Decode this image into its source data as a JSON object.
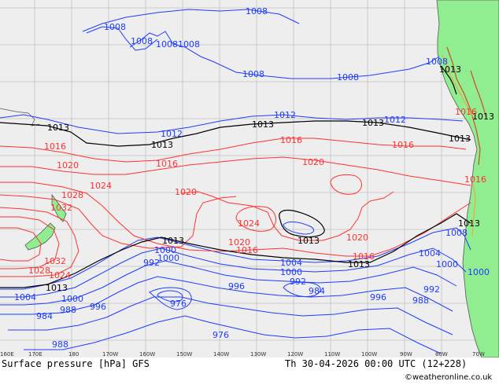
{
  "map": {
    "title": "Surface pressure [hPa] GFS",
    "timestamp": "Th 30-04-2026 00:00 UTC (12+228)",
    "credit": "©weatheronline.co.uk",
    "longitude_labels": [
      "160E",
      "170E",
      "180",
      "170W",
      "160W",
      "150W",
      "140W",
      "130W",
      "120W",
      "110W",
      "100W",
      "90W",
      "80W",
      "70W"
    ],
    "isobar_labels": {
      "l1008a": "1008",
      "l1008b": "1008",
      "l1008c": "1008",
      "l1008d": "1008",
      "l1008e": "1008",
      "l1008f": "1008",
      "l1008g": "1008",
      "l1008h": "1008",
      "l1008i": "1008",
      "l1013a": "1013",
      "l1013b": "1013",
      "l1013c": "1013",
      "l1013d": "1013",
      "l1013e": "1013",
      "l1013f": "1013",
      "l1013g": "1013",
      "l1013h": "1013",
      "l1013i": "1013",
      "l1013j": "1013",
      "l1013k": "1013",
      "l1012a": "1012",
      "l1012b": "1012",
      "l1012c": "1012",
      "l1016a": "1016",
      "l1016b": "1016",
      "l1016c": "1016",
      "l1016d": "1016",
      "l1016e": "1016",
      "l1016f": "1016",
      "l1016g": "1016",
      "l1016h": "1016",
      "l1020a": "1020",
      "l1020b": "1020",
      "l1020c": "1020",
      "l1020d": "1020",
      "l1020e": "1020",
      "l1024a": "1024",
      "l1024b": "1024",
      "l1024c": "1024",
      "l1028a": "1028",
      "l1028b": "1028",
      "l1032a": "1032",
      "l1032b": "1032",
      "l1000a": "1000",
      "l1000b": "1000",
      "l1000c": "1000",
      "l1000d": "1000",
      "l1000e": "1000",
      "l1000f": "1000",
      "l1004a": "1004",
      "l1004b": "1004",
      "l1004c": "1004",
      "l996a": "996",
      "l996b": "996",
      "l996c": "996",
      "l992a": "992",
      "l992b": "992",
      "l992c": "992",
      "l988a": "988",
      "l988b": "988",
      "l988c": "988",
      "l984a": "984",
      "l984b": "984",
      "l976a": "976",
      "l976b": "976"
    },
    "colors": {
      "background": "#eeeeee",
      "land": "#90ee90",
      "grid": "#c0c0c0",
      "isobar_low": "#1e3cff",
      "isobar_high": "#ff3232",
      "isobar_standard": "#000000",
      "coastline": "#555555"
    }
  }
}
